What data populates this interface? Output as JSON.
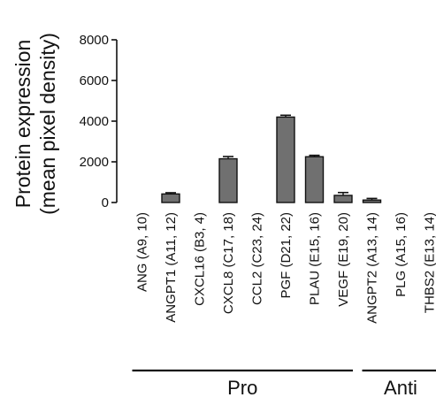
{
  "chart_data": {
    "type": "bar",
    "ylabel_lines": [
      "Protein expression",
      "(mean pixel density)"
    ],
    "ylim": [
      0,
      8000
    ],
    "yticks": [
      0,
      2000,
      4000,
      6000,
      8000
    ],
    "categories": [
      "ANG (A9, 10)",
      "ANGPT1 (A11, 12)",
      "CXCL16 (B3, 4)",
      "CXCL8 (C17, 18)",
      "CCL2 (C23, 24)",
      "PGF (D21, 22)",
      "PLAU (E15, 16)",
      "VEGF (E19, 20)",
      "ANGPT2 (A13, 14)",
      "PLG (A15, 16)",
      "THBS2 (E13, 14)"
    ],
    "values": [
      0,
      420,
      0,
      2150,
      0,
      4200,
      2250,
      350,
      120,
      0,
      0
    ],
    "errors": [
      0,
      60,
      0,
      110,
      0,
      90,
      70,
      140,
      80,
      0,
      0
    ],
    "groups": [
      {
        "label": "Pro",
        "start": 0,
        "end": 7
      },
      {
        "label": "Anti",
        "start": 8,
        "end": 10
      }
    ],
    "bar_color": "#707070",
    "grid": false
  }
}
